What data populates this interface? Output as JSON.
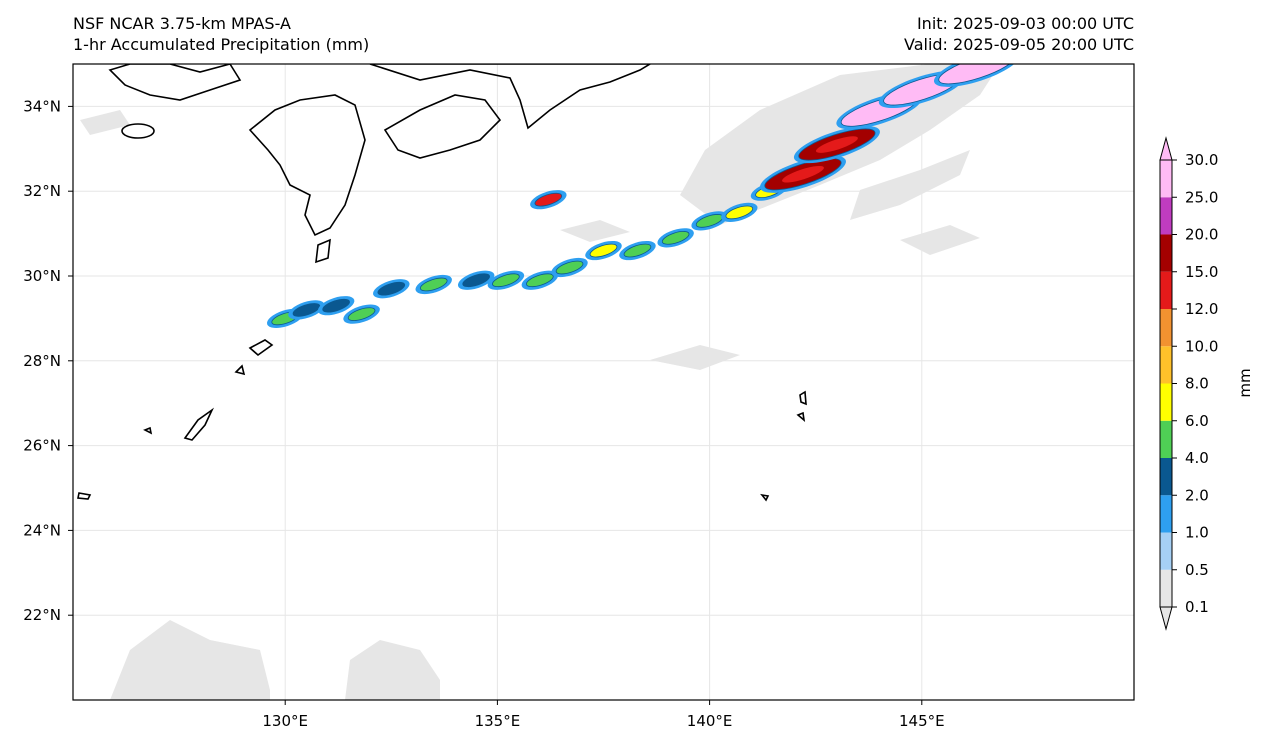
{
  "title": {
    "left_line1": "NSF NCAR 3.75-km MPAS-A",
    "left_line2": "1-hr Accumulated Precipitation (mm)",
    "right_line1": "Init: 2025-09-03 00:00 UTC",
    "right_line2": "Valid: 2025-09-05 20:00 UTC"
  },
  "map": {
    "lon_range": [
      125,
      150
    ],
    "lat_range": [
      20,
      35
    ],
    "lon_ticks": [
      {
        "value": 130,
        "label": "130°E"
      },
      {
        "value": 135,
        "label": "135°E"
      },
      {
        "value": 140,
        "label": "140°E"
      },
      {
        "value": 145,
        "label": "145°E"
      }
    ],
    "lat_ticks": [
      {
        "value": 22,
        "label": "22°N"
      },
      {
        "value": 24,
        "label": "24°N"
      },
      {
        "value": 26,
        "label": "26°N"
      },
      {
        "value": 28,
        "label": "28°N"
      },
      {
        "value": 30,
        "label": "30°N"
      },
      {
        "value": 32,
        "label": "32°N"
      },
      {
        "value": 34,
        "label": "34°N"
      }
    ],
    "grid": true
  },
  "colorbar": {
    "unit_label": "mm",
    "levels": [
      "0.1",
      "0.5",
      "1.0",
      "2.0",
      "4.0",
      "6.0",
      "8.0",
      "10.0",
      "12.0",
      "15.0",
      "20.0",
      "25.0",
      "30.0"
    ],
    "colors": [
      "#e6e6e6",
      "#a6d0f5",
      "#2e9ff0",
      "#0a5890",
      "#4fcf55",
      "#ffff00",
      "#ffc12a",
      "#f29230",
      "#e41a1a",
      "#a30000",
      "#c03cc0",
      "#ffbbf5"
    ],
    "extend": "both"
  },
  "chart_data": {
    "type": "heatmap",
    "variable": "1-hr Accumulated Precipitation (mm)",
    "x_range": [
      125,
      150
    ],
    "y_range": [
      20,
      35
    ],
    "rainband": [
      {
        "lon": 130.0,
        "lat": 29.0,
        "value": 4.0
      },
      {
        "lon": 130.5,
        "lat": 29.2,
        "value": 2.0
      },
      {
        "lon": 131.2,
        "lat": 29.3,
        "value": 2.0
      },
      {
        "lon": 131.8,
        "lat": 29.1,
        "value": 4.0
      },
      {
        "lon": 132.5,
        "lat": 29.7,
        "value": 2.0
      },
      {
        "lon": 133.5,
        "lat": 29.8,
        "value": 4.0
      },
      {
        "lon": 134.5,
        "lat": 29.9,
        "value": 2.0
      },
      {
        "lon": 135.2,
        "lat": 29.9,
        "value": 4.0
      },
      {
        "lon": 136.0,
        "lat": 29.9,
        "value": 4.0
      },
      {
        "lon": 136.7,
        "lat": 30.2,
        "value": 4.0
      },
      {
        "lon": 137.5,
        "lat": 30.6,
        "value": 6.0
      },
      {
        "lon": 138.3,
        "lat": 30.6,
        "value": 4.0
      },
      {
        "lon": 139.2,
        "lat": 30.9,
        "value": 4.0
      },
      {
        "lon": 140.0,
        "lat": 31.3,
        "value": 4.0
      },
      {
        "lon": 140.7,
        "lat": 31.5,
        "value": 6.0
      },
      {
        "lon": 141.4,
        "lat": 32.0,
        "value": 6.0
      },
      {
        "lon": 142.2,
        "lat": 32.4,
        "value": 15.0
      },
      {
        "lon": 143.0,
        "lat": 33.1,
        "value": 15.0
      },
      {
        "lon": 144.0,
        "lat": 33.9,
        "value": 25.0
      },
      {
        "lon": 145.0,
        "lat": 34.4,
        "value": 30.0
      },
      {
        "lon": 146.3,
        "lat": 34.9,
        "value": 30.0
      },
      {
        "lon": 136.2,
        "lat": 31.8,
        "value": 12.0
      }
    ]
  }
}
